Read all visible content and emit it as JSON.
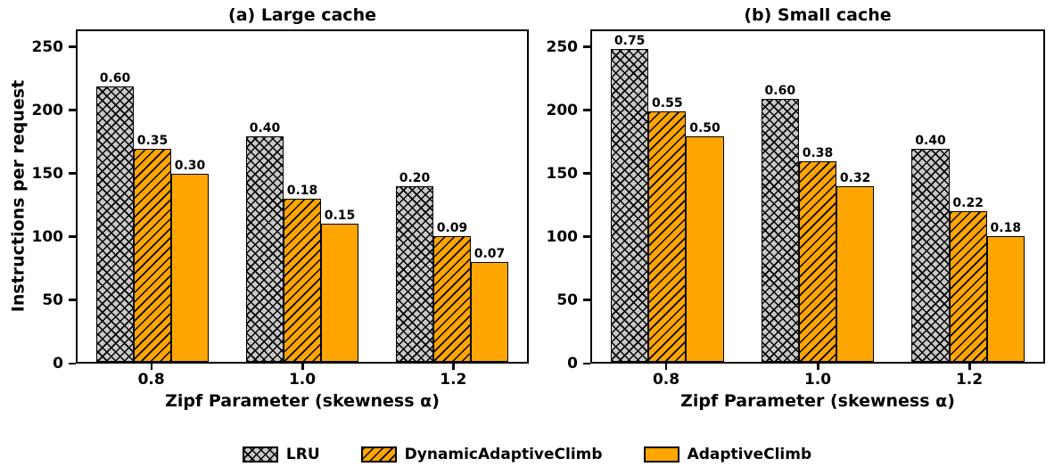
{
  "figure": {
    "background": "#ffffff",
    "ylabel": "Instructions per request",
    "colors": {
      "gray_fill": "#c8c8c8",
      "orange_fill": "#ffa500",
      "edge": "#000000",
      "text": "#000000"
    },
    "legend": [
      {
        "label": "LRU",
        "fill": "#c8c8c8",
        "hatch": "cross"
      },
      {
        "label": "DynamicAdaptiveClimb",
        "fill": "#ffa500",
        "hatch": "diag"
      },
      {
        "label": "AdaptiveClimb",
        "fill": "#ffa500",
        "hatch": "solid"
      }
    ],
    "legend_position": "bottom"
  },
  "chart_data": [
    {
      "type": "bar",
      "title": "(a) Large cache",
      "xlabel": "Zipf Parameter (skewness α)",
      "ylabel": "Instructions per request",
      "categories": [
        "0.8",
        "1.0",
        "1.2"
      ],
      "series": [
        {
          "name": "LRU",
          "fill": "#c8c8c8",
          "hatch": "cross",
          "values": [
            220,
            180,
            140
          ],
          "labels": [
            "0.60",
            "0.40",
            "0.20"
          ]
        },
        {
          "name": "DynamicAdaptiveClimb",
          "fill": "#ffa500",
          "hatch": "diag",
          "values": [
            170,
            130,
            100
          ],
          "labels": [
            "0.35",
            "0.18",
            "0.09"
          ]
        },
        {
          "name": "AdaptiveClimb",
          "fill": "#ffa500",
          "hatch": "solid",
          "values": [
            150,
            110,
            80
          ],
          "labels": [
            "0.30",
            "0.15",
            "0.07"
          ]
        }
      ],
      "yticks": [
        0,
        50,
        100,
        150,
        200,
        250
      ],
      "ylim": [
        0,
        264
      ],
      "grid": false
    },
    {
      "type": "bar",
      "title": "(b) Small cache",
      "xlabel": "Zipf Parameter (skewness α)",
      "ylabel": "",
      "categories": [
        "0.8",
        "1.0",
        "1.2"
      ],
      "series": [
        {
          "name": "LRU",
          "fill": "#c8c8c8",
          "hatch": "cross",
          "values": [
            250,
            210,
            170
          ],
          "labels": [
            "0.75",
            "0.60",
            "0.40"
          ]
        },
        {
          "name": "DynamicAdaptiveClimb",
          "fill": "#ffa500",
          "hatch": "diag",
          "values": [
            200,
            160,
            120
          ],
          "labels": [
            "0.55",
            "0.38",
            "0.22"
          ]
        },
        {
          "name": "AdaptiveClimb",
          "fill": "#ffa500",
          "hatch": "solid",
          "values": [
            180,
            140,
            100
          ],
          "labels": [
            "0.50",
            "0.32",
            "0.18"
          ]
        }
      ],
      "yticks": [
        0,
        50,
        100,
        150,
        200,
        250
      ],
      "ylim": [
        0,
        264
      ],
      "grid": false
    }
  ]
}
